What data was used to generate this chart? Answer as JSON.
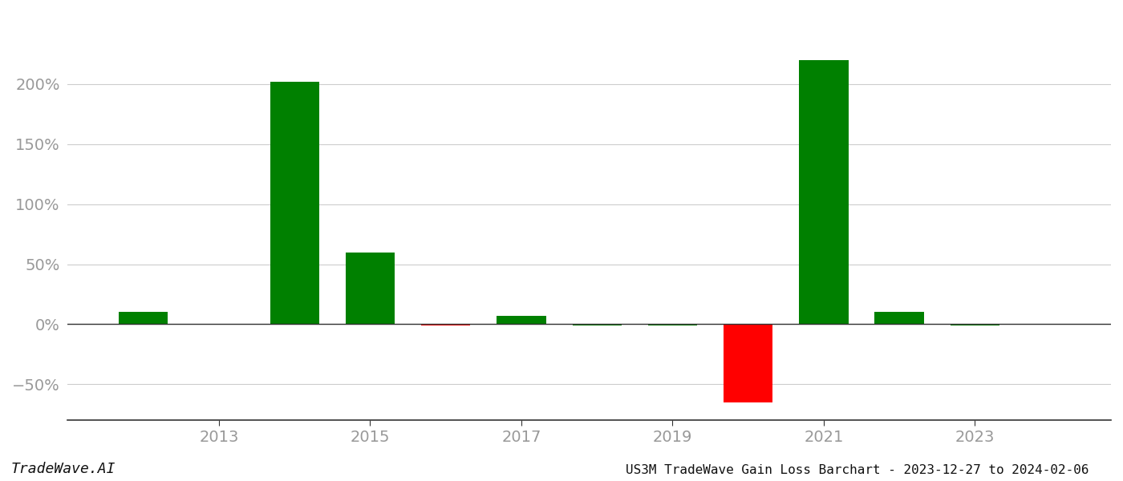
{
  "years": [
    2012,
    2014,
    2015,
    2016,
    2017,
    2018,
    2019,
    2020,
    2021,
    2022,
    2023
  ],
  "values": [
    0.1,
    2.02,
    0.6,
    -0.012,
    0.072,
    -0.008,
    -0.008,
    -0.65,
    2.2,
    0.1,
    -0.012
  ],
  "colors": [
    "#008000",
    "#008000",
    "#008000",
    "#ff0000",
    "#008000",
    "#008000",
    "#008000",
    "#ff0000",
    "#008000",
    "#008000",
    "#008000"
  ],
  "title": "US3M TradeWave Gain Loss Barchart - 2023-12-27 to 2024-02-06",
  "watermark": "TradeWave.AI",
  "ylim_min": -0.8,
  "ylim_max": 2.6,
  "bar_width": 0.65,
  "yticks": [
    -0.5,
    0.0,
    0.5,
    1.0,
    1.5,
    2.0
  ],
  "ytick_labels": [
    "−50%",
    "0%",
    "50%",
    "100%",
    "150%",
    "200%"
  ],
  "xtick_labels": [
    "2013",
    "2015",
    "2017",
    "2019",
    "2021",
    "2023"
  ],
  "xtick_positions": [
    2013,
    2015,
    2017,
    2019,
    2021,
    2023
  ],
  "xlim_min": 2011.0,
  "xlim_max": 2024.8,
  "background_color": "#ffffff",
  "grid_color": "#cccccc",
  "tick_label_color": "#999999",
  "title_color": "#111111",
  "watermark_color": "#111111",
  "spine_color": "#333333",
  "zero_line_color": "#333333"
}
